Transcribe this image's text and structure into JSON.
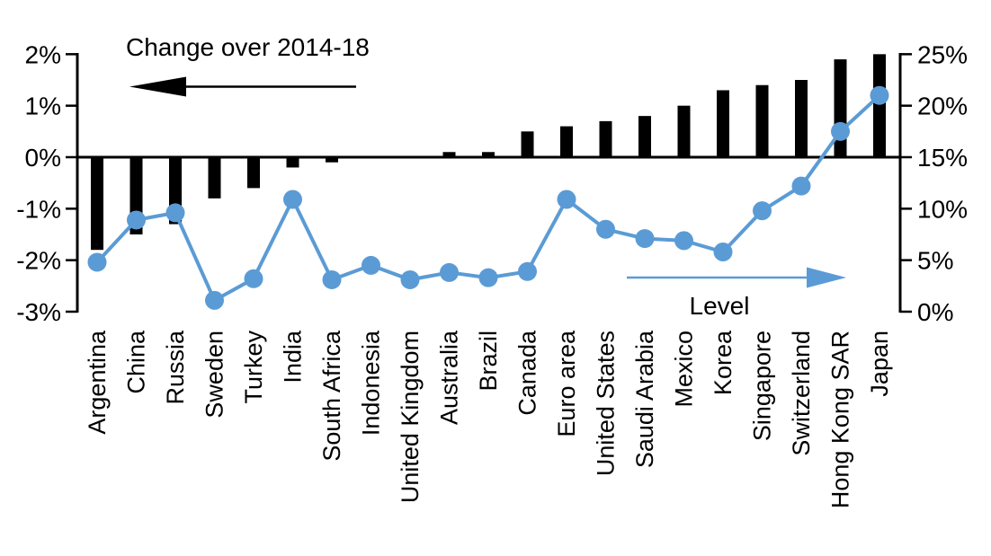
{
  "chart_data": {
    "type": "bar",
    "subtype": "dual-axis bar+line",
    "categories": [
      "Argentina",
      "China",
      "Russia",
      "Sweden",
      "Turkey",
      "India",
      "South Africa",
      "Indonesia",
      "United Kingdom",
      "Australia",
      "Brazil",
      "Canada",
      "Euro area",
      "United States",
      "Saudi Arabia",
      "Mexico",
      "Korea",
      "Singapore",
      "Switzerland",
      "Hong Kong SAR",
      "Japan"
    ],
    "series": [
      {
        "name": "Change over 2014-18",
        "type": "bar",
        "axis": "left",
        "color": "#000000",
        "values": [
          -1.8,
          -1.5,
          -1.3,
          -0.8,
          -0.6,
          -0.2,
          -0.1,
          0,
          0,
          0.1,
          0.1,
          0.5,
          0.6,
          0.7,
          0.8,
          1.0,
          1.3,
          1.4,
          1.5,
          1.9,
          2.0
        ]
      },
      {
        "name": "Level",
        "type": "line",
        "axis": "right",
        "color": "#5B9BD5",
        "values": [
          4.8,
          8.9,
          9.6,
          1.1,
          3.2,
          10.9,
          3.1,
          4.5,
          3.1,
          3.8,
          3.3,
          3.9,
          10.9,
          8.0,
          7.1,
          6.9,
          5.8,
          9.8,
          12.2,
          17.5,
          21.0
        ]
      }
    ],
    "left_axis": {
      "tick_labels": [
        "2%",
        "1%",
        "0%",
        "-1%",
        "-2%",
        "-3%"
      ],
      "tick_values": [
        2,
        1,
        0,
        -1,
        -2,
        -3
      ],
      "min": -3,
      "max": 2
    },
    "right_axis": {
      "tick_labels": [
        "25%",
        "20%",
        "15%",
        "10%",
        "5%",
        "0%"
      ],
      "tick_values": [
        25,
        20,
        15,
        10,
        5,
        0
      ],
      "min": 0,
      "max": 25
    },
    "grid": "off",
    "annotations": {
      "left_series_label": {
        "text": "Change over 2014-18",
        "arrow_direction": "left",
        "text_color": "#000000",
        "arrow_color": "#000000"
      },
      "right_series_label": {
        "text": "Level",
        "arrow_direction": "right",
        "text_color": "#000000",
        "arrow_color": "#5B9BD5"
      }
    }
  }
}
